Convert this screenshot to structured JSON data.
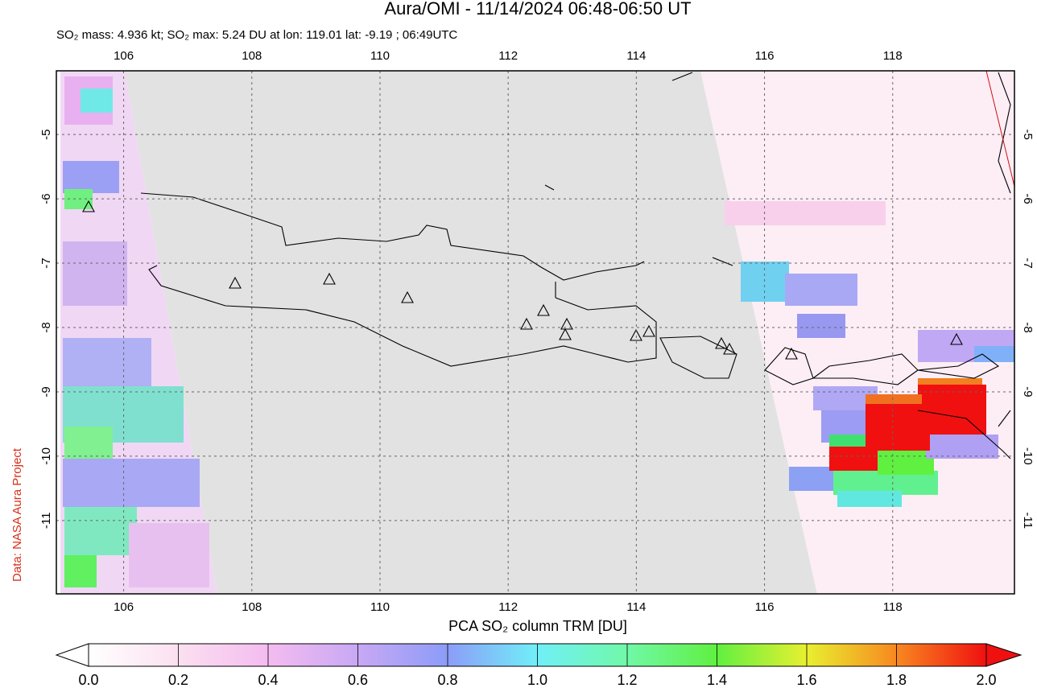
{
  "title": "Aura/OMI - 11/14/2024 06:48-06:50 UT",
  "subtitle": "SO₂ mass: 4.936 kt; SO₂ max: 5.24 DU at lon: 119.01 lat: -9.19 ; 06:49UTC",
  "credit": "Data: NASA Aura Project",
  "map": {
    "lon_range": [
      104.95,
      119.9
    ],
    "lat_range": [
      -4.01,
      -12.14
    ],
    "lon_ticks": [
      106,
      108,
      110,
      112,
      114,
      116,
      118
    ],
    "lat_ticks": [
      -5,
      -6,
      -7,
      -8,
      -9,
      -10,
      -11
    ]
  },
  "colorbar": {
    "label": "PCA SO₂ column TRM [DU]",
    "range": [
      0,
      2
    ],
    "ticks": [
      {
        "value": 0,
        "label": "0.0"
      },
      {
        "value": 0.2,
        "label": "0.2"
      },
      {
        "value": 0.4,
        "label": "0.4"
      },
      {
        "value": 0.6,
        "label": "0.6"
      },
      {
        "value": 0.8,
        "label": "0.8"
      },
      {
        "value": 1,
        "label": "1.0"
      },
      {
        "value": 1.2,
        "label": "1.2"
      },
      {
        "value": 1.4,
        "label": "1.4"
      },
      {
        "value": 1.6,
        "label": "1.6"
      },
      {
        "value": 1.8,
        "label": "1.8"
      },
      {
        "value": 2,
        "label": "2.0"
      }
    ]
  }
}
